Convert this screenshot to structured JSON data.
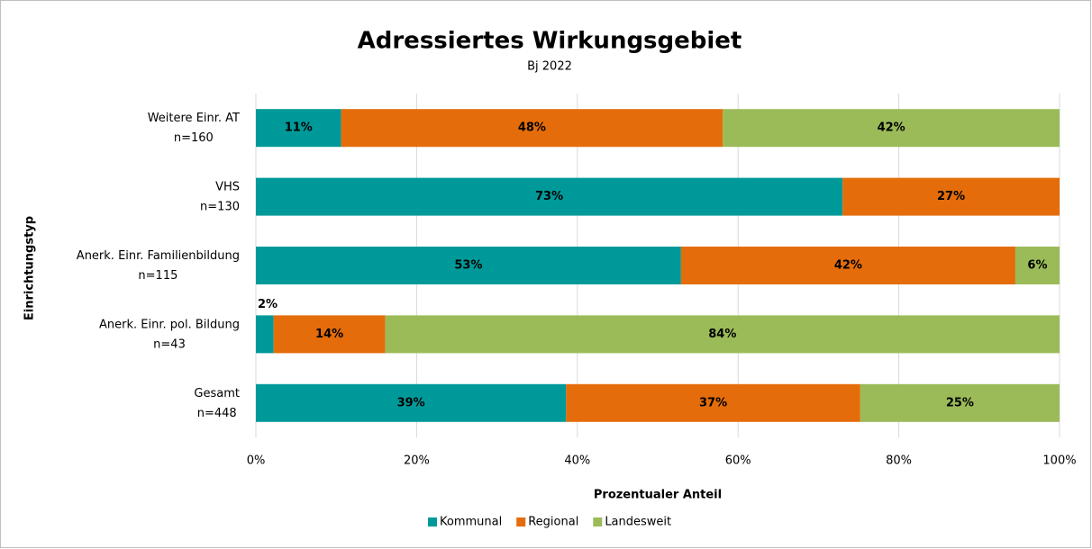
{
  "chart_data": {
    "type": "stacked_barh",
    "title": "Adressiertes Wirkungsgebiet",
    "subtitle": "Bj 2022",
    "x_label": "Prozentualer Anteil",
    "y_label": "Einrichtungstyp",
    "categories": [
      "Weitere Einr. AT\nn=160",
      "VHS\nn=130",
      "Anerk. Einr. Familienbildung\nn=115",
      "Anerk. Einr. pol. Bildung\nn=43",
      "Gesamt\nn=448"
    ],
    "series": [
      {
        "name": "Kommunal",
        "color": "#00999a",
        "values": [
          10.6,
          73.0,
          52.9,
          2.2,
          38.6
        ],
        "value_labels": [
          "11%",
          "73%",
          "53%",
          "2%",
          "39%"
        ]
      },
      {
        "name": "Regional",
        "color": "#e46c0a",
        "values": [
          47.5,
          27.0,
          41.6,
          13.9,
          36.6
        ],
        "value_labels": [
          "48%",
          "27%",
          "42%",
          "14%",
          "37%"
        ]
      },
      {
        "name": "Landesweit",
        "color": "#9bbb59",
        "values": [
          41.9,
          null,
          5.5,
          83.9,
          24.8
        ],
        "value_labels": [
          "42%",
          null,
          "6%",
          "84%",
          "25%"
        ]
      }
    ],
    "xlim": [
      0,
      100
    ],
    "xticks": [
      {
        "value": 0,
        "label": "0%"
      },
      {
        "value": 20,
        "label": "20%"
      },
      {
        "value": 40,
        "label": "40%"
      },
      {
        "value": 60,
        "label": "60%"
      },
      {
        "value": 80,
        "label": "80%"
      },
      {
        "value": 100,
        "label": "100%"
      }
    ],
    "grid": true,
    "legend": "bottom"
  }
}
